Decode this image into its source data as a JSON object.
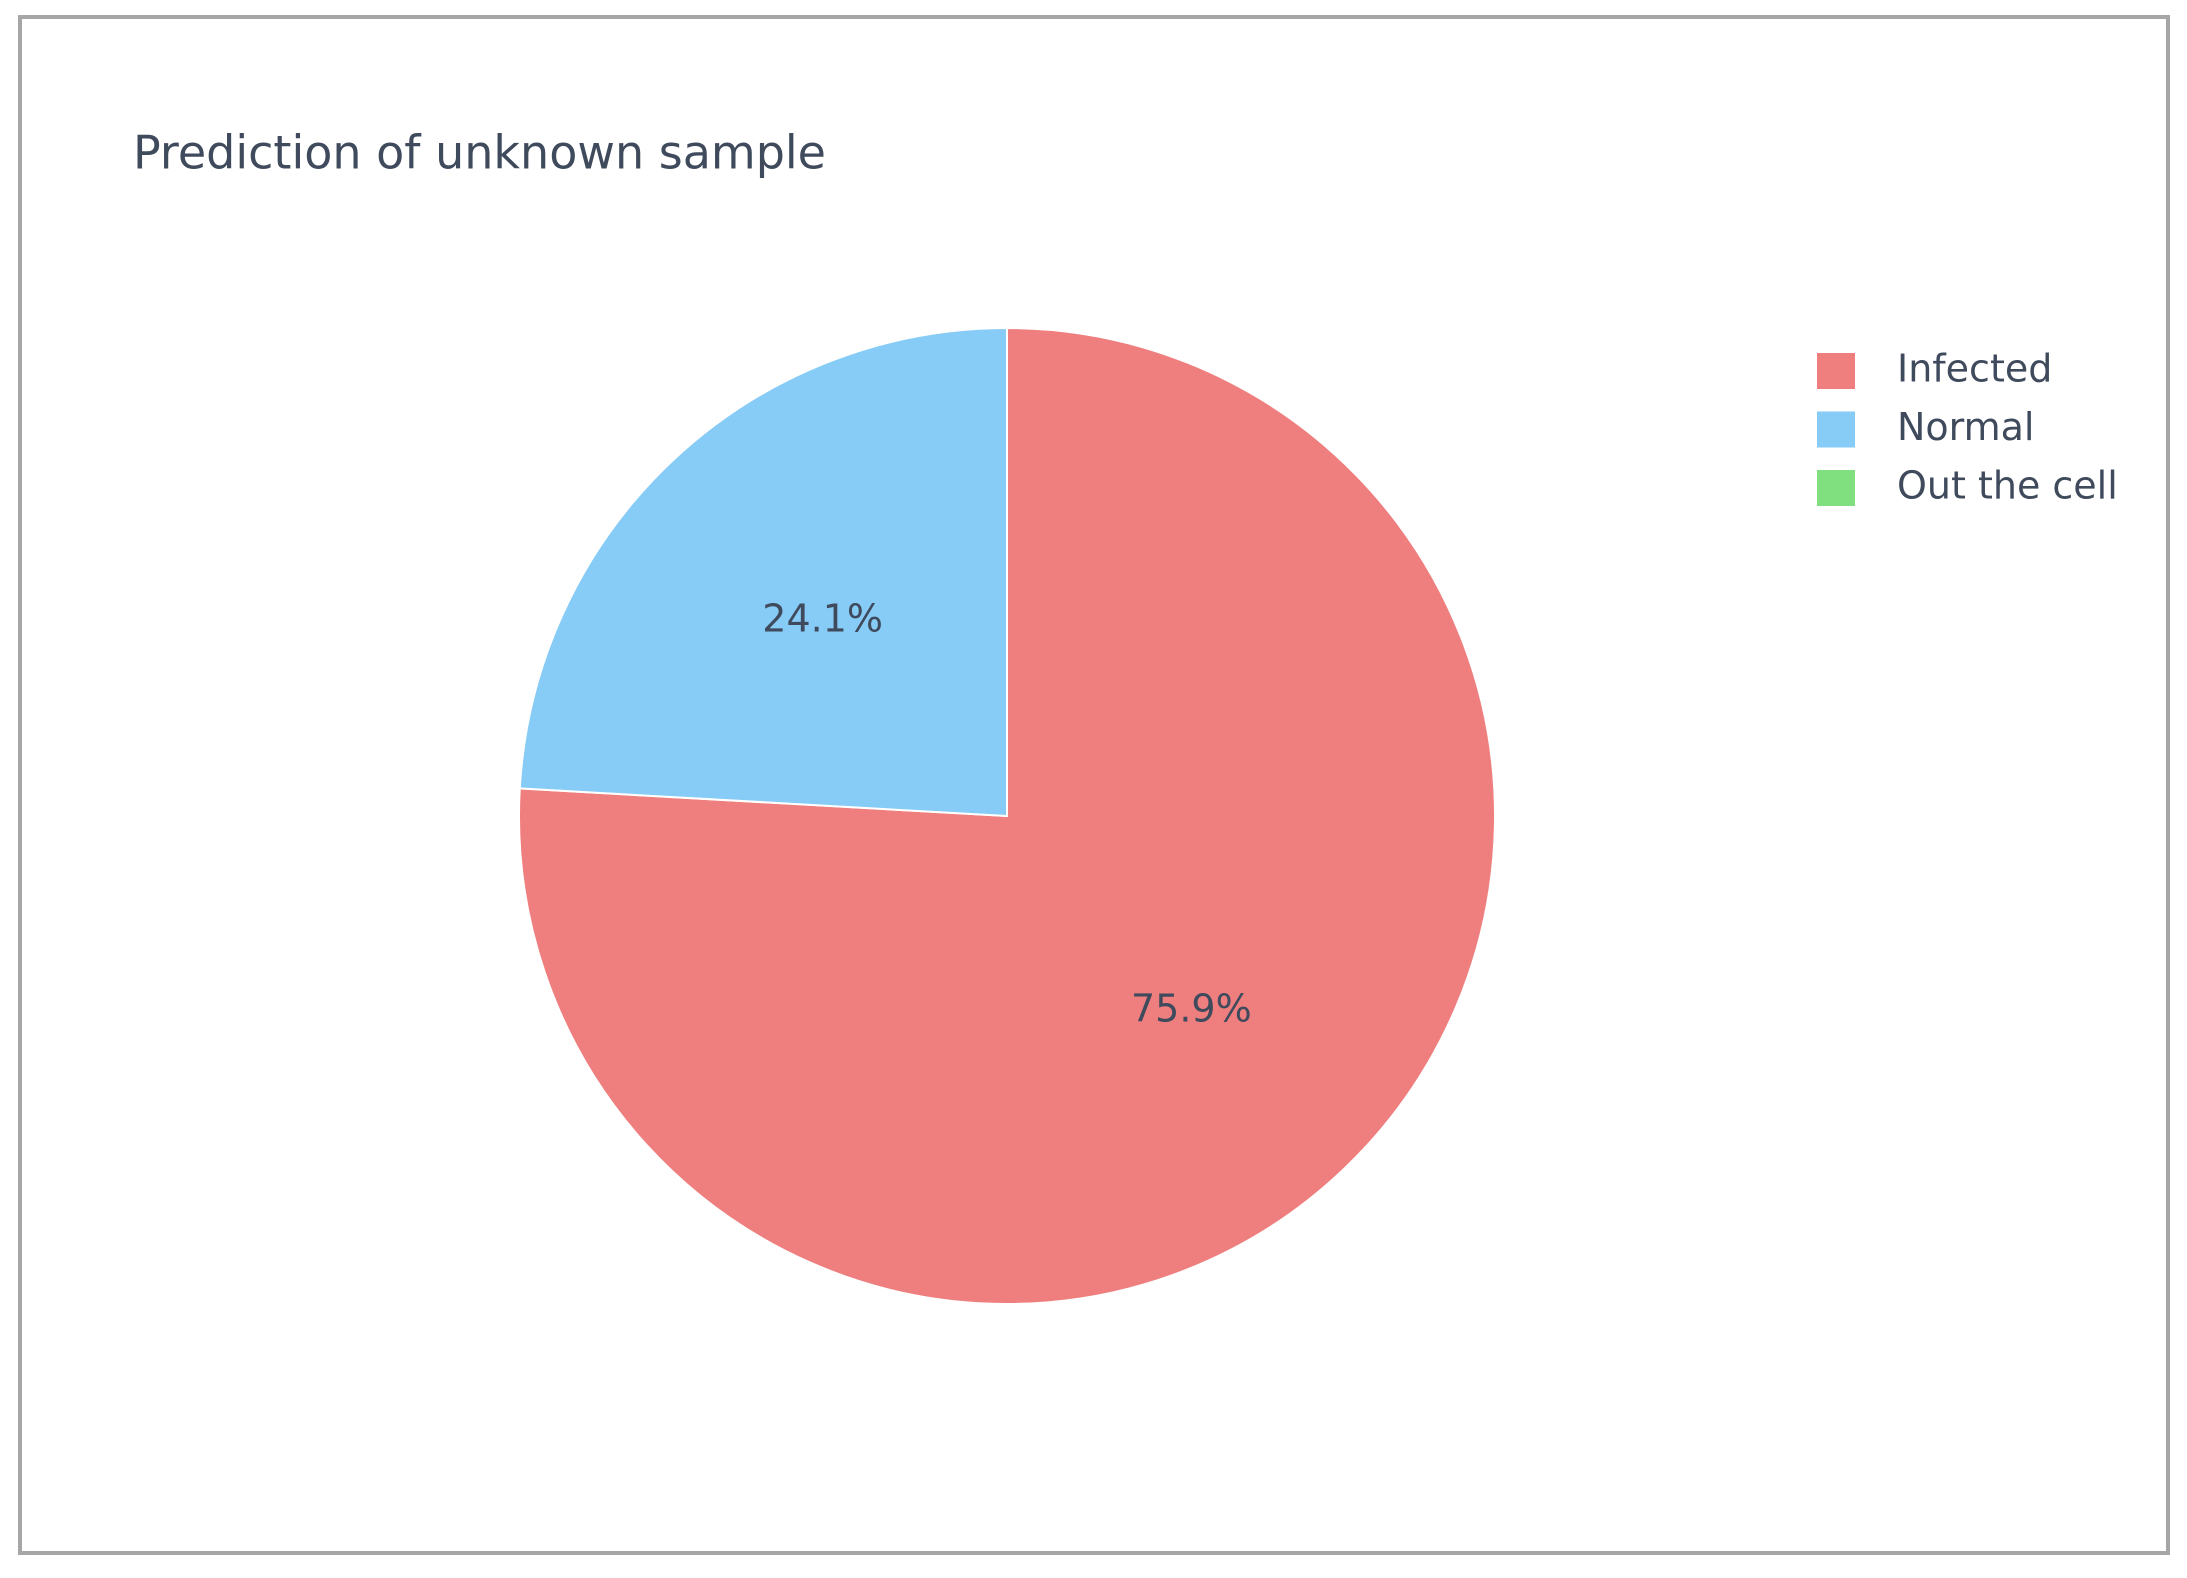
{
  "chart_data": {
    "type": "pie",
    "title": "Prediction of unknown sample",
    "categories": [
      "Infected",
      "Normal",
      "Out the cell"
    ],
    "values": [
      75.9,
      24.1,
      0
    ],
    "value_labels": [
      "75.9%",
      "24.1%",
      null
    ],
    "colors": [
      "#ee7f7e",
      "#87cbf7",
      "#80e07f"
    ],
    "legend": "top-right"
  }
}
